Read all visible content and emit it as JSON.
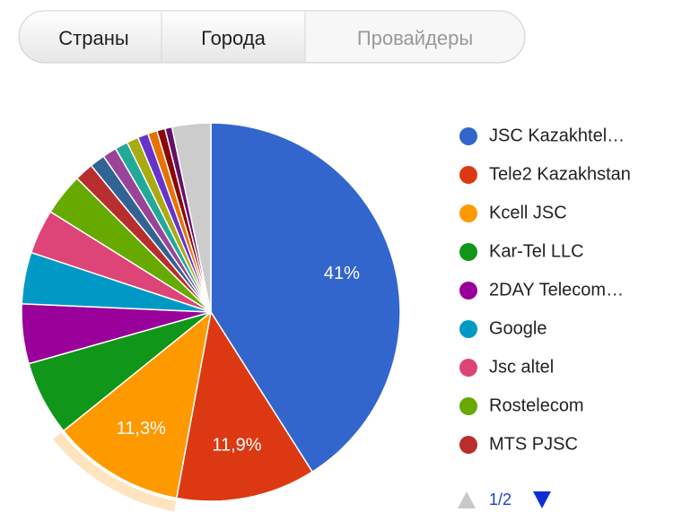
{
  "tabs": [
    "Страны",
    "Города",
    "Провайдеры"
  ],
  "active_tab": 2,
  "chart_data": {
    "type": "pie",
    "categories": [
      "JSC Kazakhtel…",
      "Tele2 Kazakhstan",
      "Kcell JSC",
      "Kar-Tel LLC",
      "2DAY Telecom…",
      "Google",
      "Jsc altel",
      "Rostelecom",
      "MTS PJSC",
      null,
      null,
      null,
      null,
      null,
      null,
      null,
      null,
      null
    ],
    "values": [
      41,
      11.9,
      11.3,
      6.4,
      5.1,
      4.4,
      3.8,
      3.6,
      1.6,
      1.3,
      1.2,
      1.1,
      1.0,
      0.9,
      0.8,
      0.7,
      0.6,
      3.3
    ],
    "value_labels": [
      "41%",
      "11,9%",
      "11,3%",
      null,
      null,
      null,
      null,
      null,
      null,
      null,
      null,
      null,
      null,
      null,
      null,
      null,
      null,
      null
    ],
    "colors": [
      "#3366cc",
      "#dc3912",
      "#ff9900",
      "#109618",
      "#990099",
      "#0099c6",
      "#dd4477",
      "#66aa00",
      "#b82e2e",
      "#316395",
      "#994499",
      "#22aa99",
      "#aaaa11",
      "#6633cc",
      "#e67300",
      "#8b0707",
      "#651067",
      "#cccccc"
    ],
    "legend_page": "1/2"
  }
}
